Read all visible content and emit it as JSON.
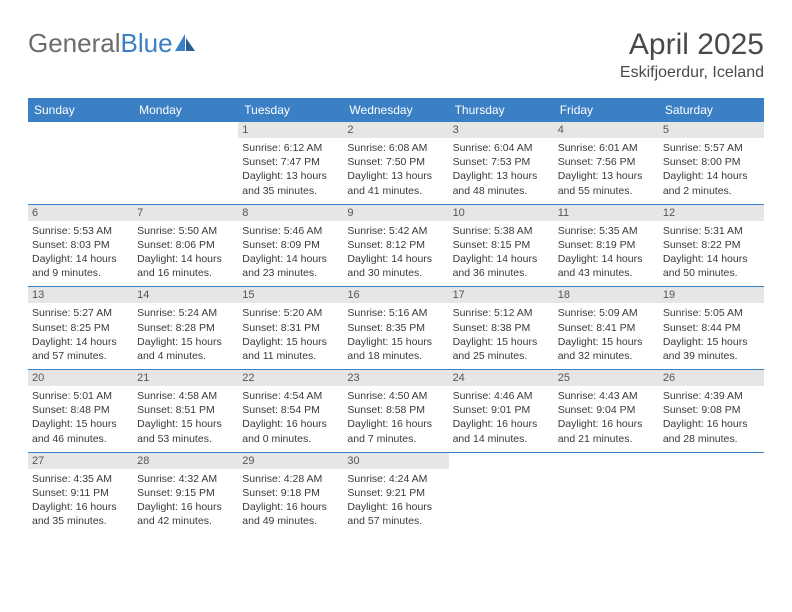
{
  "logo": {
    "text1": "General",
    "text2": "Blue"
  },
  "title": "April 2025",
  "location": "Eskifjoerdur, Iceland",
  "colors": {
    "header_bg": "#3b7fc4",
    "header_fg": "#ffffff",
    "daynum_bg": "#e6e6e6",
    "border": "#3b7fc4",
    "logo_gray": "#6c6c6c",
    "logo_blue": "#3b7fc4"
  },
  "weekdays": [
    "Sunday",
    "Monday",
    "Tuesday",
    "Wednesday",
    "Thursday",
    "Friday",
    "Saturday"
  ],
  "weeks": [
    [
      null,
      null,
      {
        "n": "1",
        "sr": "6:12 AM",
        "ss": "7:47 PM",
        "dl": "13 hours and 35 minutes."
      },
      {
        "n": "2",
        "sr": "6:08 AM",
        "ss": "7:50 PM",
        "dl": "13 hours and 41 minutes."
      },
      {
        "n": "3",
        "sr": "6:04 AM",
        "ss": "7:53 PM",
        "dl": "13 hours and 48 minutes."
      },
      {
        "n": "4",
        "sr": "6:01 AM",
        "ss": "7:56 PM",
        "dl": "13 hours and 55 minutes."
      },
      {
        "n": "5",
        "sr": "5:57 AM",
        "ss": "8:00 PM",
        "dl": "14 hours and 2 minutes."
      }
    ],
    [
      {
        "n": "6",
        "sr": "5:53 AM",
        "ss": "8:03 PM",
        "dl": "14 hours and 9 minutes."
      },
      {
        "n": "7",
        "sr": "5:50 AM",
        "ss": "8:06 PM",
        "dl": "14 hours and 16 minutes."
      },
      {
        "n": "8",
        "sr": "5:46 AM",
        "ss": "8:09 PM",
        "dl": "14 hours and 23 minutes."
      },
      {
        "n": "9",
        "sr": "5:42 AM",
        "ss": "8:12 PM",
        "dl": "14 hours and 30 minutes."
      },
      {
        "n": "10",
        "sr": "5:38 AM",
        "ss": "8:15 PM",
        "dl": "14 hours and 36 minutes."
      },
      {
        "n": "11",
        "sr": "5:35 AM",
        "ss": "8:19 PM",
        "dl": "14 hours and 43 minutes."
      },
      {
        "n": "12",
        "sr": "5:31 AM",
        "ss": "8:22 PM",
        "dl": "14 hours and 50 minutes."
      }
    ],
    [
      {
        "n": "13",
        "sr": "5:27 AM",
        "ss": "8:25 PM",
        "dl": "14 hours and 57 minutes."
      },
      {
        "n": "14",
        "sr": "5:24 AM",
        "ss": "8:28 PM",
        "dl": "15 hours and 4 minutes."
      },
      {
        "n": "15",
        "sr": "5:20 AM",
        "ss": "8:31 PM",
        "dl": "15 hours and 11 minutes."
      },
      {
        "n": "16",
        "sr": "5:16 AM",
        "ss": "8:35 PM",
        "dl": "15 hours and 18 minutes."
      },
      {
        "n": "17",
        "sr": "5:12 AM",
        "ss": "8:38 PM",
        "dl": "15 hours and 25 minutes."
      },
      {
        "n": "18",
        "sr": "5:09 AM",
        "ss": "8:41 PM",
        "dl": "15 hours and 32 minutes."
      },
      {
        "n": "19",
        "sr": "5:05 AM",
        "ss": "8:44 PM",
        "dl": "15 hours and 39 minutes."
      }
    ],
    [
      {
        "n": "20",
        "sr": "5:01 AM",
        "ss": "8:48 PM",
        "dl": "15 hours and 46 minutes."
      },
      {
        "n": "21",
        "sr": "4:58 AM",
        "ss": "8:51 PM",
        "dl": "15 hours and 53 minutes."
      },
      {
        "n": "22",
        "sr": "4:54 AM",
        "ss": "8:54 PM",
        "dl": "16 hours and 0 minutes."
      },
      {
        "n": "23",
        "sr": "4:50 AM",
        "ss": "8:58 PM",
        "dl": "16 hours and 7 minutes."
      },
      {
        "n": "24",
        "sr": "4:46 AM",
        "ss": "9:01 PM",
        "dl": "16 hours and 14 minutes."
      },
      {
        "n": "25",
        "sr": "4:43 AM",
        "ss": "9:04 PM",
        "dl": "16 hours and 21 minutes."
      },
      {
        "n": "26",
        "sr": "4:39 AM",
        "ss": "9:08 PM",
        "dl": "16 hours and 28 minutes."
      }
    ],
    [
      {
        "n": "27",
        "sr": "4:35 AM",
        "ss": "9:11 PM",
        "dl": "16 hours and 35 minutes."
      },
      {
        "n": "28",
        "sr": "4:32 AM",
        "ss": "9:15 PM",
        "dl": "16 hours and 42 minutes."
      },
      {
        "n": "29",
        "sr": "4:28 AM",
        "ss": "9:18 PM",
        "dl": "16 hours and 49 minutes."
      },
      {
        "n": "30",
        "sr": "4:24 AM",
        "ss": "9:21 PM",
        "dl": "16 hours and 57 minutes."
      },
      null,
      null,
      null
    ]
  ],
  "labels": {
    "sunrise": "Sunrise: ",
    "sunset": "Sunset: ",
    "daylight": "Daylight: "
  }
}
